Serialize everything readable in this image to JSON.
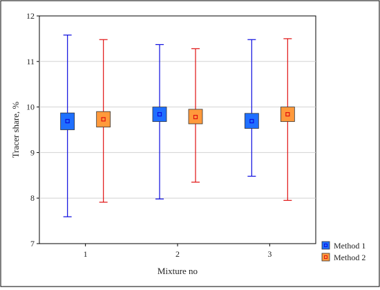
{
  "chart_data": {
    "type": "box",
    "title": "",
    "xlabel": "Mixture no",
    "ylabel": "Tracer share, %",
    "categories": [
      "1",
      "2",
      "3"
    ],
    "ylim": [
      7,
      12
    ],
    "yticks": [
      "7",
      "8",
      "9",
      "10",
      "11",
      "12"
    ],
    "grid": true,
    "legend_position": "bottom-right",
    "series": [
      {
        "name": "Method 1",
        "color_fill": "#1f6fff",
        "color_line": "#0a0adf",
        "stats": [
          {
            "min": 7.59,
            "q1": 9.5,
            "mean": 9.69,
            "q3": 9.87,
            "max": 11.58
          },
          {
            "min": 7.98,
            "q1": 9.68,
            "mean": 9.84,
            "q3": 10.0,
            "max": 11.37
          },
          {
            "min": 8.48,
            "q1": 9.53,
            "mean": 9.69,
            "q3": 9.86,
            "max": 11.48
          }
        ]
      },
      {
        "name": "Method 2",
        "color_fill": "#ff9a3c",
        "color_line": "#e01010",
        "stats": [
          {
            "min": 7.91,
            "q1": 9.56,
            "mean": 9.73,
            "q3": 9.9,
            "max": 11.48
          },
          {
            "min": 8.35,
            "q1": 9.63,
            "mean": 9.78,
            "q3": 9.95,
            "max": 11.28
          },
          {
            "min": 7.95,
            "q1": 9.68,
            "mean": 9.84,
            "q3": 10.0,
            "max": 11.5
          }
        ]
      }
    ]
  }
}
